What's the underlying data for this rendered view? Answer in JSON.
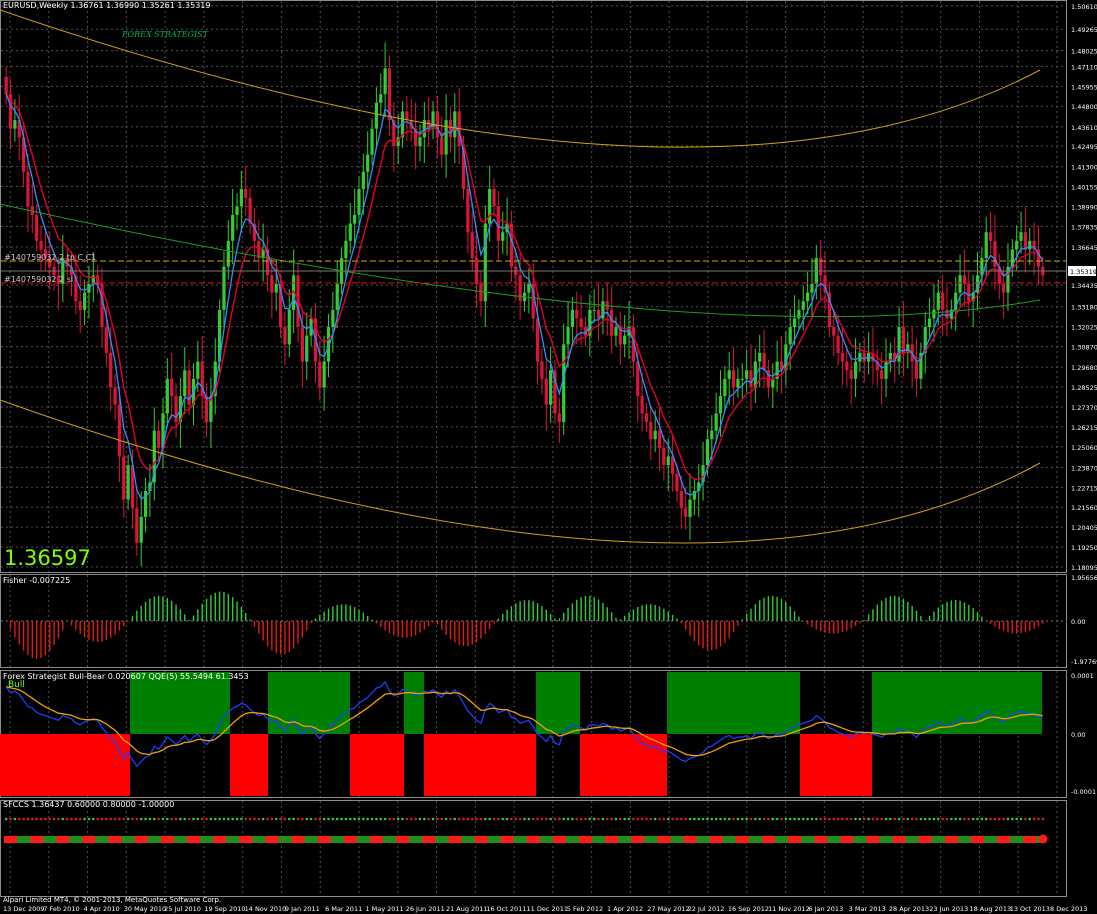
{
  "header": {
    "main_title": "EURUSD,Weekly  1.36761 1.36990 1.35261 1.35319",
    "fisher_title": "Fisher -0.007225",
    "bullbear_title": "Forex Strategist Bull-Bear 0.020607  QQE(5) 55.5494 61.3453",
    "sfcc_title": "SFCCS 1.36437 0.60000 0.80000 -1.00000",
    "watermark": "FOREX STRATEGIST",
    "big_price": "1.36597",
    "bull_label": "Bull",
    "copyright": "Alpari Limited MT4, © 2001-2013, MetaQuotes Software Corp.",
    "tp_label": "#140759032 2 tp C.C1",
    "sl_label": "#140759032 2 sl",
    "current_price": "1.35319"
  },
  "chart_data": [
    {
      "type": "candlestick",
      "title": "EURUSD,Weekly",
      "ylim": [
        1.18095,
        1.5061
      ],
      "price_ticks": [
        "1.50610",
        "1.49265",
        "1.48025",
        "1.47110",
        "1.45955",
        "1.44800",
        "1.43610",
        "1.42495",
        "1.41300",
        "1.40155",
        "1.38990",
        "1.37835",
        "1.36645",
        "1.34435",
        "1.33180",
        "1.32025",
        "1.30870",
        "1.29680",
        "1.28525",
        "1.27370",
        "1.26215",
        "1.25060",
        "1.23870",
        "1.22715",
        "1.21560",
        "1.20405",
        "1.19250",
        "1.18095"
      ],
      "date_ticks": [
        "13 Dec 2009",
        "7 Feb 2010",
        "4 Apr 2010",
        "30 May 2010",
        "25 Jul 2010",
        "19 Sep 2010",
        "14 Nov 2010",
        "9 Jan 2011",
        "6 Mar 2011",
        "1 May 2011",
        "26 Jun 2011",
        "21 Aug 2011",
        "16 Oct 2011",
        "11 Dec 2011",
        "5 Feb 2012",
        "1 Apr 2012",
        "27 May 2012",
        "22 Jul 2012",
        "16 Sep 2012",
        "11 Nov 2012",
        "6 Jan 2013",
        "3 Mar 2013",
        "28 Apr 2013",
        "23 Jun 2013",
        "18 Aug 2013",
        "13 Oct 2013",
        "8 Dec 2013"
      ],
      "close": [
        1.455,
        1.435,
        1.44,
        1.43,
        1.41,
        1.39,
        1.385,
        1.37,
        1.365,
        1.36,
        1.355,
        1.35,
        1.345,
        1.36,
        1.355,
        1.35,
        1.335,
        1.33,
        1.34,
        1.345,
        1.35,
        1.345,
        1.32,
        1.305,
        1.285,
        1.275,
        1.245,
        1.22,
        1.24,
        1.215,
        1.195,
        1.21,
        1.225,
        1.23,
        1.26,
        1.25,
        1.27,
        1.29,
        1.28,
        1.265,
        1.28,
        1.295,
        1.275,
        1.29,
        1.3,
        1.28,
        1.265,
        1.28,
        1.3,
        1.33,
        1.355,
        1.37,
        1.385,
        1.39,
        1.4,
        1.395,
        1.38,
        1.37,
        1.36,
        1.365,
        1.35,
        1.34,
        1.345,
        1.32,
        1.31,
        1.33,
        1.35,
        1.32,
        1.3,
        1.315,
        1.325,
        1.3,
        1.285,
        1.3,
        1.32,
        1.33,
        1.345,
        1.36,
        1.37,
        1.38,
        1.385,
        1.4,
        1.41,
        1.42,
        1.435,
        1.45,
        1.455,
        1.47,
        1.44,
        1.425,
        1.43,
        1.445,
        1.44,
        1.435,
        1.425,
        1.43,
        1.44,
        1.435,
        1.445,
        1.43,
        1.42,
        1.44,
        1.43,
        1.445,
        1.425,
        1.4,
        1.375,
        1.36,
        1.345,
        1.335,
        1.38,
        1.4,
        1.39,
        1.37,
        1.375,
        1.38,
        1.355,
        1.35,
        1.335,
        1.34,
        1.345,
        1.325,
        1.3,
        1.29,
        1.275,
        1.295,
        1.27,
        1.265,
        1.31,
        1.32,
        1.33,
        1.325,
        1.32,
        1.315,
        1.33,
        1.33,
        1.325,
        1.335,
        1.33,
        1.315,
        1.32,
        1.31,
        1.315,
        1.32,
        1.3,
        1.28,
        1.27,
        1.265,
        1.255,
        1.26,
        1.25,
        1.24,
        1.245,
        1.235,
        1.225,
        1.215,
        1.21,
        1.22,
        1.225,
        1.23,
        1.24,
        1.255,
        1.26,
        1.27,
        1.28,
        1.29,
        1.295,
        1.285,
        1.29,
        1.29,
        1.295,
        1.285,
        1.3,
        1.305,
        1.295,
        1.285,
        1.29,
        1.3,
        1.295,
        1.31,
        1.32,
        1.325,
        1.33,
        1.335,
        1.34,
        1.345,
        1.36,
        1.35,
        1.34,
        1.32,
        1.315,
        1.305,
        1.3,
        1.295,
        1.29,
        1.3,
        1.305,
        1.3,
        1.305,
        1.3,
        1.295,
        1.29,
        1.3,
        1.305,
        1.3,
        1.32,
        1.305,
        1.31,
        1.3,
        1.29,
        1.305,
        1.32,
        1.325,
        1.33,
        1.34,
        1.33,
        1.325,
        1.33,
        1.34,
        1.35,
        1.345,
        1.335,
        1.34,
        1.35,
        1.36,
        1.375,
        1.37,
        1.355,
        1.345,
        1.34,
        1.355,
        1.365,
        1.37,
        1.375,
        1.365,
        1.37,
        1.365,
        1.355,
        1.35
      ],
      "upper_band": [
        1.402,
        1.4
      ],
      "series": [
        {
          "name": "Fisher",
          "values": [
            -0.9,
            -0.5,
            0.6,
            0.7,
            -0.8,
            0.4,
            -0.4,
            -0.6,
            0.5,
            0.6,
            0.4,
            -0.7,
            0.6,
            -0.3,
            0.6,
            0.5,
            -0.3
          ]
        },
        {
          "name": "Bull-Bear",
          "values": [
            -1,
            1,
            -1,
            1,
            -1,
            1,
            -1,
            1,
            -1,
            1,
            -1,
            1
          ]
        },
        {
          "name": "SFCCS",
          "values": []
        }
      ]
    }
  ]
}
